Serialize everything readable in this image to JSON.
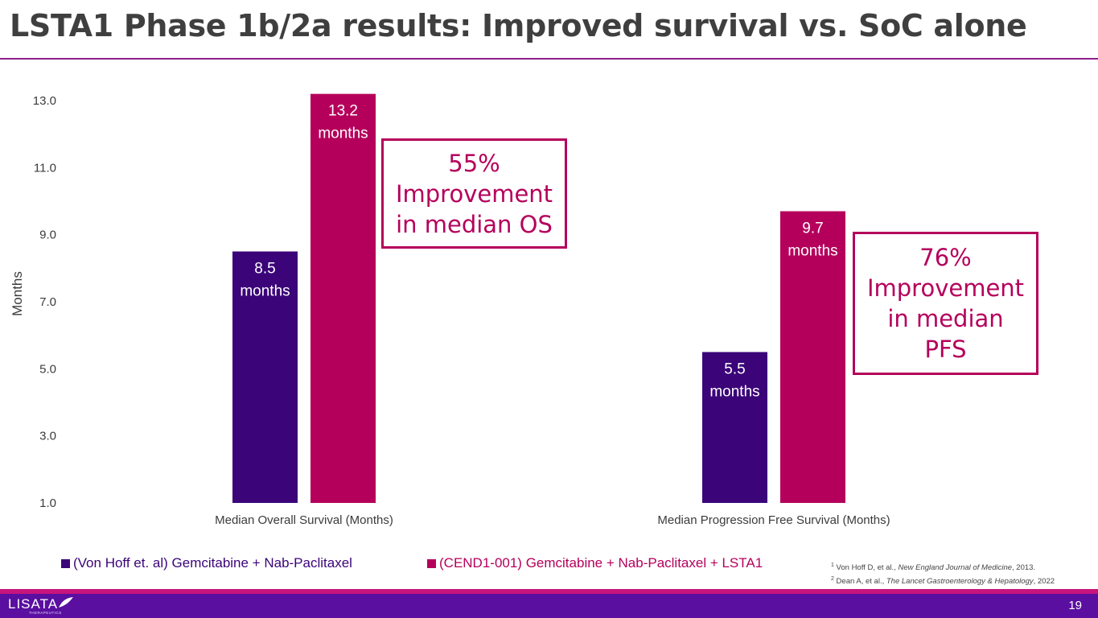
{
  "title": "LSTA1 Phase 1b/2a results: Improved survival vs. SoC alone",
  "chart_data": {
    "type": "bar",
    "ylabel": "Months",
    "ylim": [
      1.0,
      13.0
    ],
    "yticks": [
      "1.0",
      "3.0",
      "5.0",
      "7.0",
      "9.0",
      "11.0",
      "13.0"
    ],
    "categories": [
      "Median Overall Survival (Months)",
      "Median Progression Free Survival (Months)"
    ],
    "series": [
      {
        "name": "(Von Hoff et. al) Gemcitabine + Nab-Paclitaxel",
        "color": "#3b0479",
        "values": [
          8.5,
          5.5
        ],
        "labels": [
          [
            "8.5",
            "months"
          ],
          [
            "5.5",
            "months"
          ]
        ]
      },
      {
        "name": "(CEND1-001) Gemcitabine + Nab-Paclitaxel + LSTA1",
        "color": "#b5005b",
        "values": [
          13.2,
          9.7
        ],
        "labels": [
          [
            "13.2",
            "months"
          ],
          [
            "9.7",
            "months"
          ]
        ]
      }
    ],
    "annotations": [
      {
        "lines": [
          "55%",
          "Improvement",
          "in median OS"
        ]
      },
      {
        "lines": [
          "76%",
          "Improvement",
          "in median",
          "PFS"
        ]
      }
    ]
  },
  "legend": [
    {
      "label": "(Von Hoff et. al) Gemcitabine + Nab-Paclitaxel",
      "color": "#3b0479"
    },
    {
      "label": "(CEND1-001) Gemcitabine + Nab-Paclitaxel + LSTA1",
      "color": "#b5005b"
    }
  ],
  "footnotes": [
    {
      "num": "1",
      "pre": "Von Hoff D, et al., ",
      "journal": "New England Journal of Medicine",
      "post": ", 2013."
    },
    {
      "num": "2",
      "pre": "Dean A, et al., ",
      "journal": "The Lancet Gastroenterology & Hepatology",
      "post": ", 2022"
    }
  ],
  "footer": {
    "logo": "LISATA",
    "logo_sub": "THERAPEUTICS",
    "page_number": "19"
  }
}
